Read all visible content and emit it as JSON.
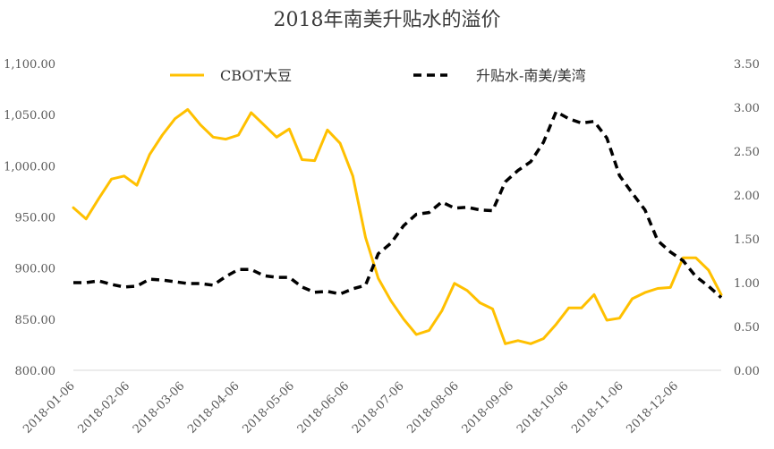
{
  "chart_data": {
    "type": "line",
    "title": "2018年南美升贴水的溢价",
    "xlabel": "",
    "ylabel_left": "",
    "ylabel_right": "",
    "x_tick_labels": [
      "2018-01-06",
      "2018-02-06",
      "2018-03-06",
      "2018-04-06",
      "2018-05-06",
      "2018-06-06",
      "2018-07-06",
      "2018-08-06",
      "2018-09-06",
      "2018-10-06",
      "2018-11-06",
      "2018-12-06"
    ],
    "y_left": {
      "range": [
        800,
        1100
      ],
      "ticks": [
        "800.00",
        "850.00",
        "900.00",
        "950.00",
        "1,000.00",
        "1,050.00",
        "1,100.00"
      ]
    },
    "y_right": {
      "range": [
        0,
        3.5
      ],
      "ticks": [
        "0.00",
        "0.50",
        "1.00",
        "1.50",
        "2.00",
        "2.50",
        "3.00",
        "3.50"
      ]
    },
    "grid": false,
    "legend_position": "top",
    "series": [
      {
        "name": "CBOT大豆",
        "axis": "left",
        "color": "#FFC000",
        "style": "solid",
        "values": [
          959,
          948,
          968,
          987,
          990,
          981,
          1011,
          1030,
          1046,
          1055,
          1040,
          1028,
          1026,
          1030,
          1052,
          1040,
          1028,
          1036,
          1006,
          1005,
          1035,
          1022,
          990,
          930,
          890,
          868,
          850,
          835,
          839,
          858,
          885,
          878,
          866,
          860,
          826,
          829,
          826,
          831,
          845,
          861,
          861,
          874,
          849,
          851,
          870,
          876,
          880,
          881,
          910,
          910,
          898,
          874
        ]
      },
      {
        "name": "升贴水-南美/美湾",
        "axis": "right",
        "color": "#000000",
        "style": "dashed",
        "values": [
          1.0,
          1.0,
          1.02,
          0.98,
          0.95,
          0.96,
          1.04,
          1.03,
          1.01,
          0.99,
          0.99,
          0.97,
          1.07,
          1.15,
          1.15,
          1.08,
          1.06,
          1.06,
          0.95,
          0.89,
          0.9,
          0.87,
          0.93,
          0.97,
          1.33,
          1.45,
          1.65,
          1.78,
          1.8,
          1.92,
          1.85,
          1.86,
          1.83,
          1.82,
          2.15,
          2.28,
          2.38,
          2.6,
          2.95,
          2.87,
          2.82,
          2.84,
          2.65,
          2.22,
          2.02,
          1.83,
          1.48,
          1.35,
          1.25,
          1.07,
          0.96,
          0.83
        ]
      }
    ]
  }
}
